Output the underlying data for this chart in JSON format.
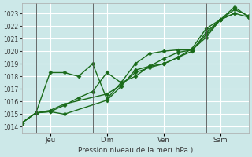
{
  "background_color": "#cce8e8",
  "grid_color": "#ffffff",
  "line_color": "#1a6b1a",
  "marker_color": "#1a6b1a",
  "title": "Pression niveau de la mer( hPa )",
  "ylabel_ticks": [
    1014,
    1015,
    1016,
    1017,
    1018,
    1019,
    1020,
    1021,
    1022,
    1023
  ],
  "ylim": [
    1013.5,
    1023.8
  ],
  "xlim": [
    0,
    96
  ],
  "day_ticks": [
    {
      "x": 12,
      "label": "Jeu"
    },
    {
      "x": 36,
      "label": "Dim"
    },
    {
      "x": 60,
      "label": "Ven"
    },
    {
      "x": 84,
      "label": "Sam"
    }
  ],
  "series": [
    {
      "x": [
        0,
        6,
        12,
        18,
        36,
        42,
        48,
        54,
        60,
        66,
        72,
        78,
        84,
        90,
        96
      ],
      "y": [
        1014.3,
        1015.1,
        1015.2,
        1015.0,
        1016.1,
        1017.2,
        1018.5,
        1018.8,
        1019.0,
        1019.5,
        1020.0,
        1021.5,
        1022.5,
        1023.5,
        1022.7
      ]
    },
    {
      "x": [
        0,
        6,
        12,
        18,
        36,
        42,
        48,
        54,
        60,
        66,
        72,
        78,
        84,
        90,
        96
      ],
      "y": [
        1014.3,
        1015.1,
        1015.3,
        1015.8,
        1016.6,
        1017.3,
        1018.3,
        1018.7,
        1019.0,
        1019.5,
        1020.2,
        1021.8,
        1022.5,
        1023.3,
        1022.8
      ]
    },
    {
      "x": [
        0,
        6,
        12,
        18,
        24,
        30,
        36,
        42,
        48,
        54,
        60,
        66,
        72,
        78,
        84,
        90,
        96
      ],
      "y": [
        1014.3,
        1015.1,
        1015.2,
        1015.7,
        1016.3,
        1016.8,
        1018.3,
        1017.5,
        1018.0,
        1018.8,
        1019.4,
        1019.9,
        1020.1,
        1021.3,
        1022.5,
        1023.0,
        1022.7
      ]
    },
    {
      "x": [
        0,
        6,
        12,
        18,
        24,
        30,
        36,
        42,
        48,
        54,
        60,
        66,
        72,
        78,
        84,
        90
      ],
      "y": [
        1014.3,
        1015.1,
        1018.3,
        1018.3,
        1018.0,
        1019.0,
        1016.2,
        1017.5,
        1019.0,
        1019.8,
        1020.0,
        1020.1,
        1020.1,
        1021.1,
        1022.5,
        1023.0
      ]
    }
  ]
}
